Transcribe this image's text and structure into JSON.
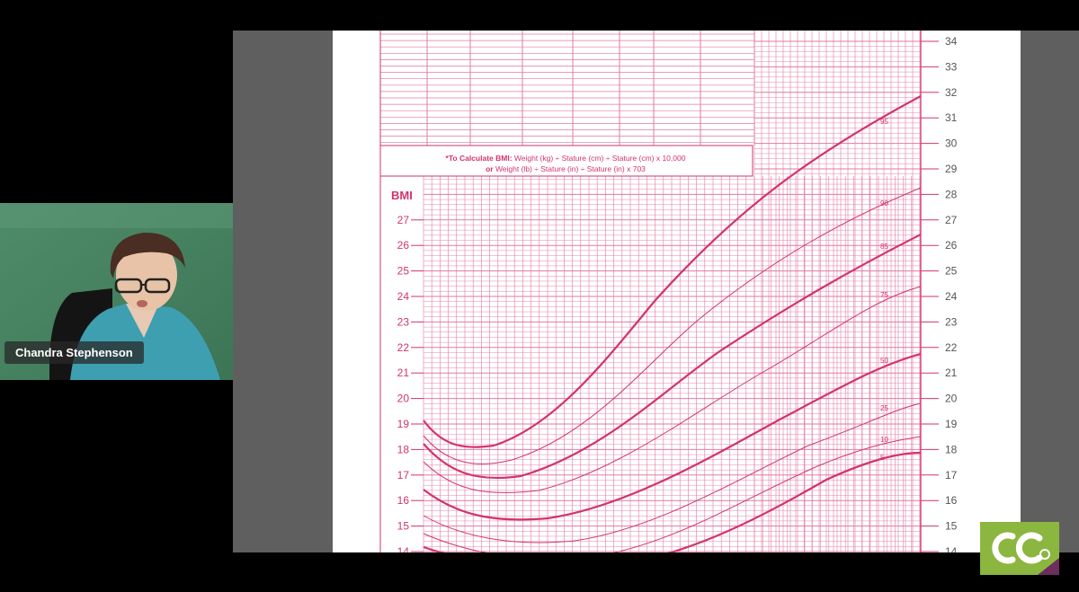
{
  "meeting": {
    "speaker_name": "Chandra Stephenson"
  },
  "chart": {
    "bmi_label": "BMI",
    "formula_line1_bold": "*To Calculate BMI:",
    "formula_line1_rest": " Weight (kg) ÷ Stature (cm) ÷ Stature (cm) x 10,000",
    "formula_line2_bold": "or",
    "formula_line2_rest": " Weight (lb) ÷ Stature (in) ÷ Stature (in) x 703",
    "left_axis_ticks": [
      "27",
      "26",
      "25",
      "24",
      "23",
      "22",
      "21",
      "20",
      "19",
      "18",
      "17",
      "16",
      "15",
      "14"
    ],
    "right_axis_ticks": [
      "34",
      "33",
      "32",
      "31",
      "30",
      "29",
      "28",
      "27",
      "26",
      "25",
      "24",
      "23",
      "22",
      "21",
      "20",
      "19",
      "18",
      "17",
      "16",
      "15",
      "14"
    ],
    "percentile_labels": [
      "95",
      "90",
      "85",
      "75",
      "50",
      "25",
      "10",
      "5"
    ],
    "colors": {
      "ink": "#d2336f",
      "grid": "#e27aa2",
      "paper": "#ffffff",
      "share_bg": "#5f5f5f"
    }
  },
  "logo": {
    "text": "CC",
    "bg": "#8bb63f",
    "accent": "#6b2e5e"
  }
}
